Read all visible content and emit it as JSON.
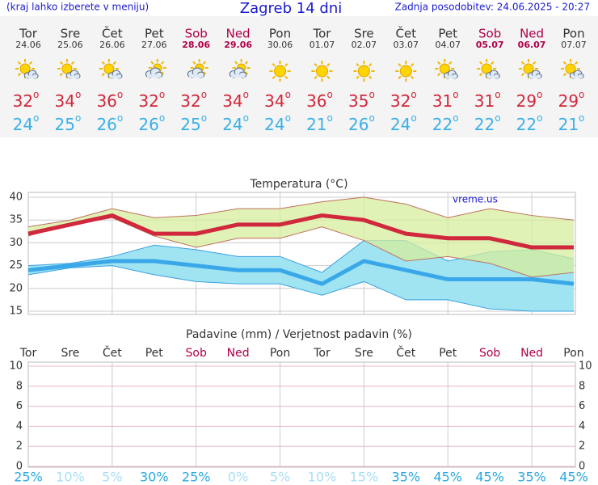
{
  "header": {
    "left": "(kraj lahko izberete v meniju)",
    "title": "Zagreb 14 dni",
    "right": "Zadnja posodobitev: 24.06.2025 - 20:27"
  },
  "degree_mark": "o",
  "days": [
    {
      "name": "Tor",
      "date": "24.06",
      "weekend": false,
      "icon": "partly",
      "max": 32,
      "min": 24
    },
    {
      "name": "Sre",
      "date": "25.06",
      "weekend": false,
      "icon": "partly",
      "max": 34,
      "min": 25
    },
    {
      "name": "Čet",
      "date": "26.06",
      "weekend": false,
      "icon": "partly",
      "max": 36,
      "min": 26
    },
    {
      "name": "Pet",
      "date": "27.06",
      "weekend": false,
      "icon": "cloudy",
      "max": 32,
      "min": 26
    },
    {
      "name": "Sob",
      "date": "28.06",
      "weekend": true,
      "icon": "cloudy",
      "max": 32,
      "min": 25
    },
    {
      "name": "Ned",
      "date": "29.06",
      "weekend": true,
      "icon": "cloudy",
      "max": 34,
      "min": 24
    },
    {
      "name": "Pon",
      "date": "30.06",
      "weekend": false,
      "icon": "sunny",
      "max": 34,
      "min": 24
    },
    {
      "name": "Tor",
      "date": "01.07",
      "weekend": false,
      "icon": "sunny",
      "max": 36,
      "min": 21
    },
    {
      "name": "Sre",
      "date": "02.07",
      "weekend": false,
      "icon": "sunny",
      "max": 35,
      "min": 26
    },
    {
      "name": "Čet",
      "date": "03.07",
      "weekend": false,
      "icon": "sunny",
      "max": 32,
      "min": 24
    },
    {
      "name": "Pet",
      "date": "04.07",
      "weekend": false,
      "icon": "partly",
      "max": 31,
      "min": 22
    },
    {
      "name": "Sob",
      "date": "05.07",
      "weekend": true,
      "icon": "partly",
      "max": 31,
      "min": 22
    },
    {
      "name": "Ned",
      "date": "06.07",
      "weekend": true,
      "icon": "partly",
      "max": 29,
      "min": 22
    },
    {
      "name": "Pon",
      "date": "07.07",
      "weekend": false,
      "icon": "partly",
      "max": 29,
      "min": 21
    }
  ],
  "chart_data": [
    {
      "type": "line",
      "title": "Temperatura (°C)",
      "watermark": "vreme.us",
      "ylim": [
        15,
        40
      ],
      "yticks": [
        15,
        20,
        25,
        30,
        35,
        40
      ],
      "grid": true,
      "bands": [
        {
          "color": "#d6ee9c",
          "edge": "#c07060",
          "upper": [
            33.5,
            35,
            37.5,
            35.5,
            36,
            37.5,
            37.5,
            39,
            40,
            38.5,
            35.5,
            37.5,
            36,
            35
          ],
          "lower": [
            31.5,
            34,
            35.5,
            31.5,
            29,
            31,
            31,
            33.5,
            30.5,
            26,
            27,
            25.5,
            22.5,
            23.5
          ]
        },
        {
          "color": "#a0e4f2",
          "edge": "#3aa0e0",
          "upper": [
            25,
            25.5,
            27,
            29.5,
            28.5,
            27,
            27,
            23.5,
            30.5,
            30.5,
            26,
            28,
            28.5,
            26.5
          ],
          "lower": [
            23,
            24.5,
            25,
            23,
            21.5,
            21,
            21,
            18.5,
            21.5,
            17.5,
            17.5,
            15.5,
            15,
            15
          ]
        }
      ],
      "series": [
        {
          "color": "#d0283c",
          "values": [
            32,
            34,
            36,
            32,
            32,
            34,
            34,
            36,
            35,
            32,
            31,
            31,
            29,
            29
          ]
        },
        {
          "color": "#3aa8e8",
          "values": [
            24,
            25,
            26,
            26,
            25,
            24,
            24,
            21,
            26,
            24,
            22,
            22,
            22,
            21
          ]
        }
      ]
    },
    {
      "type": "bar",
      "title": "Padavine (mm) / Verjetnost padavin (%)",
      "ylim": [
        0,
        10
      ],
      "yticks": [
        0,
        2,
        4,
        6,
        8,
        10
      ],
      "grid": true,
      "probability": {
        "values": [
          25,
          10,
          5,
          30,
          25,
          0,
          5,
          10,
          15,
          35,
          45,
          45,
          35,
          45
        ],
        "value_labels": [
          "25%",
          "10%",
          "5%",
          "30%",
          "25%",
          "0%",
          "5%",
          "10%",
          "15%",
          "35%",
          "45%",
          "45%",
          "35%",
          "45%"
        ]
      }
    }
  ]
}
